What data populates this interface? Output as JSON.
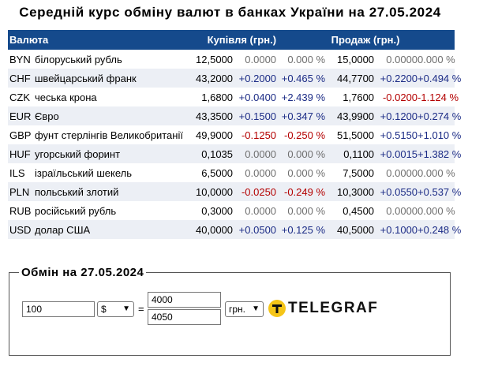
{
  "title": "Середній курс обміну валют в банках України на 27.05.2024",
  "table": {
    "headers": {
      "currency": "Валюта",
      "buy": "Купівля (грн.)",
      "sell": "Продаж (грн.)"
    },
    "rows": [
      {
        "code": "BYN",
        "name": "білоруський рубль",
        "buy": "12,5000",
        "buy_chg": "0.0000",
        "buy_pct": "0.000 %",
        "sell": "15,0000",
        "sell_chg": "0.0000",
        "sell_pct": "0.000 %"
      },
      {
        "code": "CHF",
        "name": "швейцарський франк",
        "buy": "43,2000",
        "buy_chg": "+0.2000",
        "buy_pct": "+0.465 %",
        "sell": "44,7700",
        "sell_chg": "+0.2200",
        "sell_pct": "+0.494 %"
      },
      {
        "code": "CZK",
        "name": "чеська крона",
        "buy": "1,6800",
        "buy_chg": "+0.0400",
        "buy_pct": "+2.439 %",
        "sell": "1,7600",
        "sell_chg": "-0.0200",
        "sell_pct": "-1.124 %"
      },
      {
        "code": "EUR",
        "name": "Євро",
        "buy": "43,3500",
        "buy_chg": "+0.1500",
        "buy_pct": "+0.347 %",
        "sell": "43,9900",
        "sell_chg": "+0.1200",
        "sell_pct": "+0.274 %"
      },
      {
        "code": "GBP",
        "name": "фунт стерлінгів Великобританії",
        "buy": "49,9000",
        "buy_chg": "-0.1250",
        "buy_pct": "-0.250 %",
        "sell": "51,5000",
        "sell_chg": "+0.5150",
        "sell_pct": "+1.010 %"
      },
      {
        "code": "HUF",
        "name": "угорський форинт",
        "buy": "0,1035",
        "buy_chg": "0.0000",
        "buy_pct": "0.000 %",
        "sell": "0,1100",
        "sell_chg": "+0.0015",
        "sell_pct": "+1.382 %"
      },
      {
        "code": "ILS",
        "name": "ізраїльський шекель",
        "buy": "6,5000",
        "buy_chg": "0.0000",
        "buy_pct": "0.000 %",
        "sell": "7,5000",
        "sell_chg": "0.0000",
        "sell_pct": "0.000 %"
      },
      {
        "code": "PLN",
        "name": "польський злотий",
        "buy": "10,0000",
        "buy_chg": "-0.0250",
        "buy_pct": "-0.249 %",
        "sell": "10,3000",
        "sell_chg": "+0.0550",
        "sell_pct": "+0.537 %"
      },
      {
        "code": "RUB",
        "name": "російський рубль",
        "buy": "0,3000",
        "buy_chg": "0.0000",
        "buy_pct": "0.000 %",
        "sell": "0,4500",
        "sell_chg": "0.0000",
        "sell_pct": "0.000 %"
      },
      {
        "code": "USD",
        "name": "долар США",
        "buy": "40,0000",
        "buy_chg": "+0.0500",
        "buy_pct": "+0.125 %",
        "sell": "40,5000",
        "sell_chg": "+0.1000",
        "sell_pct": "+0.248 %"
      }
    ]
  },
  "exchange": {
    "legend": "Обмін на 27.05.2024",
    "amount_value": "100",
    "from_currency": "$",
    "equals": "=",
    "result_buy": "4000",
    "result_sell": "4050",
    "to_currency": "грн.",
    "logo_text": "TELEGRAF"
  },
  "colors": {
    "header_bg": "#154a8c",
    "row_alt_bg": "#eceff5",
    "positive": "#1c2c86",
    "negative": "#b40000",
    "zero": "#6f6f6f",
    "logo_yellow": "#f5c518"
  },
  "icons": {
    "select_arrow": "chevron-down-icon",
    "logo": "telegraf-logo-icon"
  }
}
